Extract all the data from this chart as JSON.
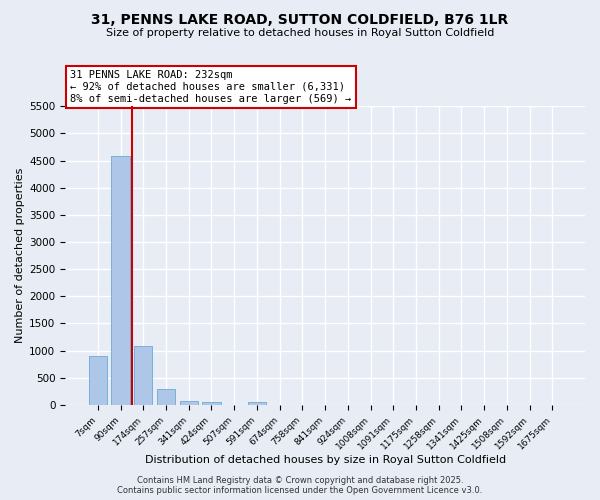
{
  "title1": "31, PENNS LAKE ROAD, SUTTON COLDFIELD, B76 1LR",
  "title2": "Size of property relative to detached houses in Royal Sutton Coldfield",
  "xlabel": "Distribution of detached houses by size in Royal Sutton Coldfield",
  "ylabel": "Number of detached properties",
  "bar_color": "#aec6e8",
  "bar_edge_color": "#6aaad4",
  "background_color": "#e8edf5",
  "grid_color": "#ffffff",
  "categories": [
    "7sqm",
    "90sqm",
    "174sqm",
    "257sqm",
    "341sqm",
    "424sqm",
    "507sqm",
    "591sqm",
    "674sqm",
    "758sqm",
    "841sqm",
    "924sqm",
    "1008sqm",
    "1091sqm",
    "1175sqm",
    "1258sqm",
    "1341sqm",
    "1425sqm",
    "1508sqm",
    "1592sqm",
    "1675sqm"
  ],
  "values": [
    900,
    4580,
    1090,
    300,
    70,
    50,
    0,
    50,
    0,
    0,
    0,
    0,
    0,
    0,
    0,
    0,
    0,
    0,
    0,
    0,
    0
  ],
  "vline_x": 1.5,
  "vline_color": "#cc0000",
  "annotation_text": "31 PENNS LAKE ROAD: 232sqm\n← 92% of detached houses are smaller (6,331)\n8% of semi-detached houses are larger (569) →",
  "annotation_box_color": "#ffffff",
  "annotation_box_edge_color": "#cc0000",
  "ylim": [
    0,
    5500
  ],
  "yticks": [
    0,
    500,
    1000,
    1500,
    2000,
    2500,
    3000,
    3500,
    4000,
    4500,
    5000,
    5500
  ],
  "footnote1": "Contains HM Land Registry data © Crown copyright and database right 2025.",
  "footnote2": "Contains public sector information licensed under the Open Government Licence v3.0.",
  "title1_fontsize": 10,
  "title2_fontsize": 8
}
